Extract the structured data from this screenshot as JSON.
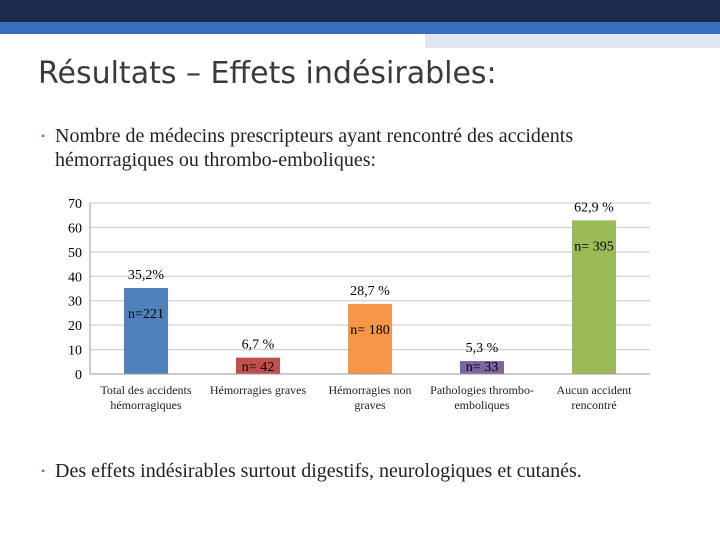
{
  "slide_title": "Résultats – Effets indésirables:",
  "bullets": [
    "Nombre de médecins prescripteurs ayant rencontré des accidents hémorragiques ou thrombo-emboliques:",
    "Des effets indésirables surtout digestifs, neurologiques et cutanés."
  ],
  "chart_data": {
    "type": "bar",
    "categories": [
      "Total des accidents hémorragiques",
      "Hémorragies graves",
      "Hémorragies non graves",
      "Pathologies thrombo-emboliques",
      "Aucun accident rencontré"
    ],
    "values": [
      35.2,
      6.7,
      28.7,
      5.3,
      62.9
    ],
    "value_labels": [
      "35,2%",
      "6,7 %",
      "28,7 %",
      "5,3 %",
      "62,9 %"
    ],
    "n_labels": [
      "n=221",
      "n= 42",
      "n= 180",
      "n= 33",
      "n= 395"
    ],
    "colors": [
      "#4f81bd",
      "#c0504d",
      "#f79646",
      "#8064a2",
      "#9bbb59"
    ],
    "ylim": [
      0,
      70
    ],
    "yticks": [
      0,
      10,
      20,
      30,
      40,
      50,
      60,
      70
    ],
    "grid": true
  }
}
